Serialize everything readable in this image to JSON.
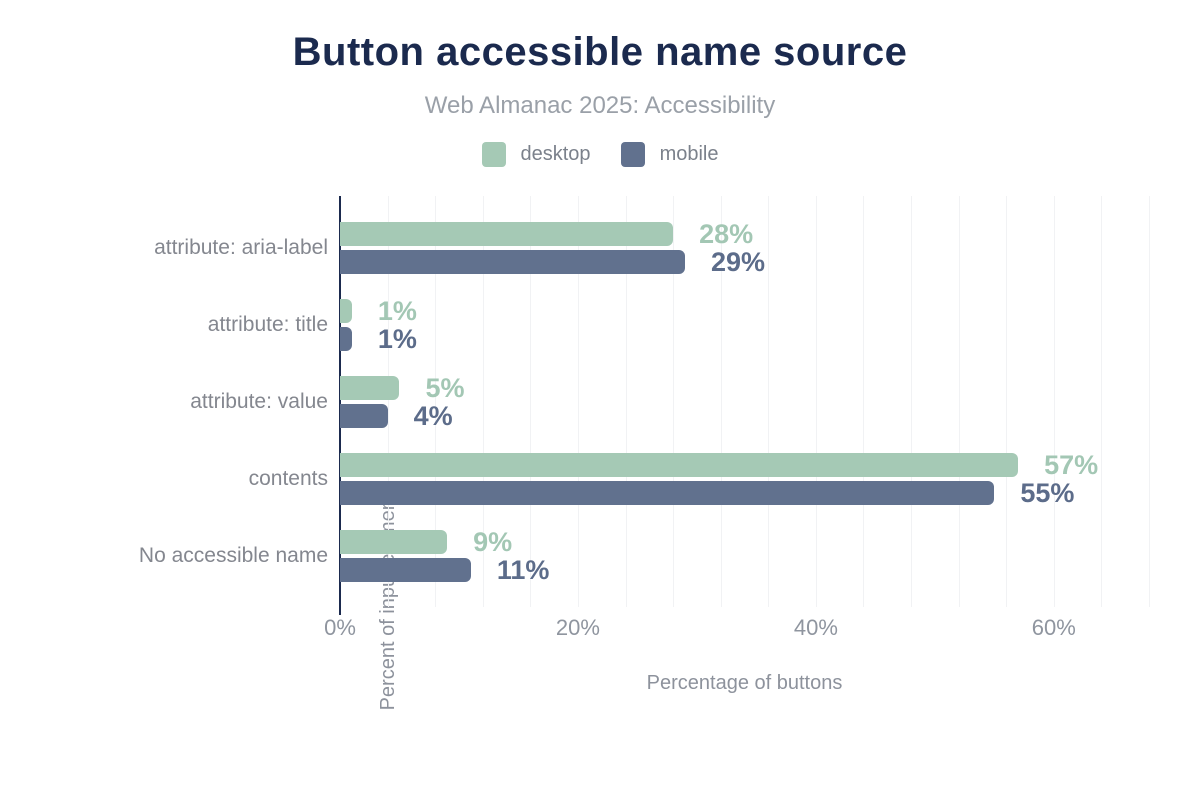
{
  "header": {
    "title": "Button accessible name source",
    "subtitle": "Web Almanac 2025: Accessibility"
  },
  "colors": {
    "desktop": "#a5c9b5",
    "mobile": "#61718e",
    "desktop_label": "#a3c7b4",
    "mobile_label": "#5c6c8a",
    "title_navy": "#1b2a4e",
    "gridline": "#f1f2f4",
    "category_text": "#84878f",
    "tick_text": "#8f959f",
    "axis_title_text": "#8d929c"
  },
  "chart_data": {
    "type": "bar",
    "orientation": "horizontal",
    "title": "Button accessible name source",
    "subtitle": "Web Almanac 2025: Accessibility",
    "categories": [
      "attribute: aria-label",
      "attribute: title",
      "attribute: value",
      "contents",
      "No accessible name"
    ],
    "series": [
      {
        "name": "desktop",
        "color": "#a5c9b5",
        "values": [
          28,
          1,
          5,
          57,
          9
        ]
      },
      {
        "name": "mobile",
        "color": "#61718e",
        "values": [
          29,
          1,
          4,
          55,
          11
        ]
      }
    ],
    "value_suffix": "%",
    "data_labels": {
      "desktop": [
        "28%",
        "1%",
        "5%",
        "57%",
        "9%"
      ],
      "mobile": [
        "29%",
        "1%",
        "4%",
        "55%",
        "11%"
      ]
    },
    "xlabel": "Percentage of buttons",
    "ylabel": "Percent of input elements",
    "x_ticks": [
      0,
      20,
      40,
      60
    ],
    "x_tick_labels": [
      "0%",
      "20%",
      "40%",
      "60%"
    ],
    "xlim": [
      0,
      68
    ],
    "minor_grid_step": 4,
    "grid": true,
    "legend_position": "top"
  }
}
